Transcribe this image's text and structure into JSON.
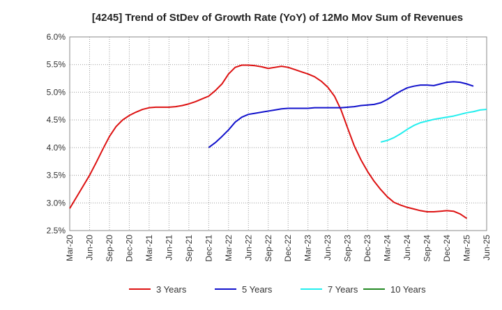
{
  "chart_data": {
    "type": "line",
    "title": "[4245]  Trend of StDev of Growth Rate (YoY) of 12Mo Mov Sum of Revenues",
    "xlabel": "",
    "ylabel": "",
    "ylim": [
      2.5,
      6.0
    ],
    "yticks": [
      "6.0%",
      "5.5%",
      "5.0%",
      "4.5%",
      "4.0%",
      "3.5%",
      "3.0%",
      "2.5%"
    ],
    "ytick_values": [
      6.0,
      5.5,
      5.0,
      4.5,
      4.0,
      3.5,
      3.0,
      2.5
    ],
    "xticks": [
      "Mar-20",
      "Jun-20",
      "Sep-20",
      "Dec-20",
      "Mar-21",
      "Jun-21",
      "Sep-21",
      "Dec-21",
      "Mar-22",
      "Jun-22",
      "Sep-22",
      "Dec-22",
      "Mar-23",
      "Jun-23",
      "Sep-23",
      "Dec-23",
      "Mar-24",
      "Jun-24",
      "Sep-24",
      "Dec-24",
      "Mar-25",
      "Jun-25"
    ],
    "x_start": "Mar-20",
    "x_months": 63,
    "grid": true,
    "legend_position": "bottom",
    "series": [
      {
        "name": "3 Years",
        "color": "#dd1111",
        "start_index": 0,
        "values": [
          2.9,
          3.1,
          3.3,
          3.5,
          3.73,
          3.97,
          4.2,
          4.38,
          4.5,
          4.58,
          4.64,
          4.69,
          4.72,
          4.73,
          4.73,
          4.73,
          4.74,
          4.76,
          4.79,
          4.83,
          4.88,
          4.93,
          5.03,
          5.15,
          5.33,
          5.45,
          5.49,
          5.49,
          5.48,
          5.46,
          5.43,
          5.45,
          5.47,
          5.45,
          5.41,
          5.37,
          5.33,
          5.28,
          5.2,
          5.09,
          4.93,
          4.68,
          4.35,
          4.03,
          3.78,
          3.57,
          3.39,
          3.24,
          3.11,
          3.01,
          2.96,
          2.92,
          2.89,
          2.86,
          2.84,
          2.84,
          2.85,
          2.86,
          2.85,
          2.8,
          2.72
        ]
      },
      {
        "name": "5 Years",
        "color": "#1111cc",
        "start_index": 21,
        "values": [
          4.0,
          4.09,
          4.2,
          4.32,
          4.46,
          4.55,
          4.6,
          4.62,
          4.64,
          4.66,
          4.68,
          4.7,
          4.71,
          4.71,
          4.71,
          4.71,
          4.72,
          4.72,
          4.72,
          4.72,
          4.72,
          4.73,
          4.74,
          4.76,
          4.77,
          4.78,
          4.81,
          4.87,
          4.95,
          5.02,
          5.08,
          5.11,
          5.13,
          5.13,
          5.12,
          5.15,
          5.18,
          5.19,
          5.18,
          5.15,
          5.11
        ]
      },
      {
        "name": "7 Years",
        "color": "#22eeee",
        "start_index": 47,
        "values": [
          4.1,
          4.13,
          4.18,
          4.25,
          4.33,
          4.4,
          4.45,
          4.48,
          4.51,
          4.53,
          4.55,
          4.57,
          4.6,
          4.63,
          4.65,
          4.68,
          4.69
        ]
      },
      {
        "name": "10 Years",
        "color": "#228822",
        "start_index": 0,
        "values": []
      }
    ]
  }
}
